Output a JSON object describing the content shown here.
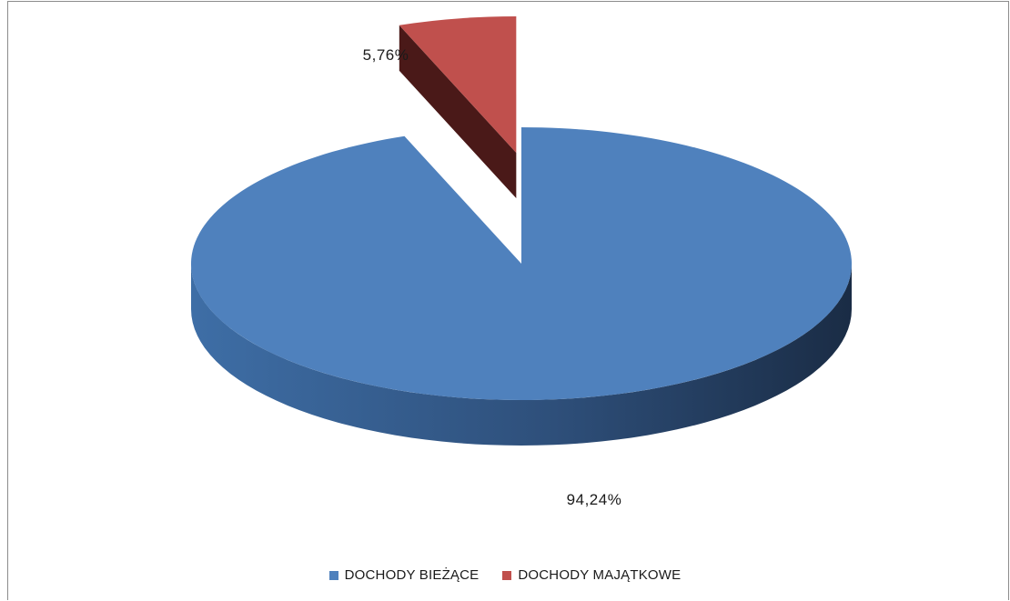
{
  "chart_data": {
    "type": "pie",
    "title": "",
    "labels": [
      "DOCHODY BIEŻĄCE",
      "DOCHODY MAJĄTKOWE"
    ],
    "values": [
      94.24,
      5.76
    ],
    "data_labels": [
      "94,24%",
      "5,76%"
    ],
    "colors": [
      "#4F81BD",
      "#C0504D"
    ],
    "style": "3d-exploded",
    "legend_position": "bottom"
  }
}
